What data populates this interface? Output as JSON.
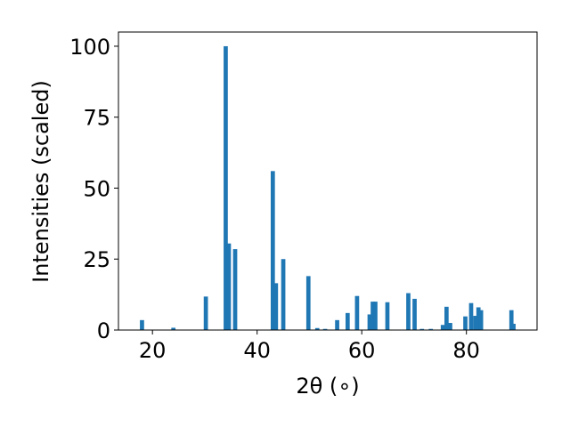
{
  "chart_data": {
    "type": "bar",
    "title": "",
    "xlabel": "2θ (∘)",
    "ylabel": "Intensities (scaled)",
    "xlim": [
      13.5,
      93.5
    ],
    "ylim": [
      0,
      105
    ],
    "xticks": [
      20,
      40,
      60,
      80
    ],
    "yticks": [
      0,
      25,
      50,
      75,
      100
    ],
    "bar_width": 0.8,
    "color": "#1f77b4",
    "grid": false,
    "legend": "none",
    "x": [
      18.0,
      24.0,
      30.2,
      34.0,
      34.6,
      35.8,
      43.0,
      43.6,
      45.0,
      49.8,
      51.5,
      53.0,
      55.3,
      57.3,
      59.1,
      61.5,
      62.1,
      62.6,
      64.9,
      68.9,
      70.1,
      71.5,
      73.2,
      75.5,
      76.2,
      76.9,
      79.8,
      80.9,
      81.7,
      82.3,
      82.8,
      88.6,
      89.0
    ],
    "values": [
      3.5,
      0.8,
      11.8,
      100.0,
      30.5,
      28.5,
      56.0,
      16.5,
      25.0,
      19.0,
      0.7,
      0.4,
      3.5,
      6.0,
      12.0,
      5.5,
      10.0,
      10.0,
      9.8,
      13.0,
      11.0,
      0.4,
      0.4,
      1.8,
      8.2,
      2.5,
      4.8,
      9.5,
      5.0,
      8.0,
      7.0,
      7.0,
      2.2
    ]
  }
}
